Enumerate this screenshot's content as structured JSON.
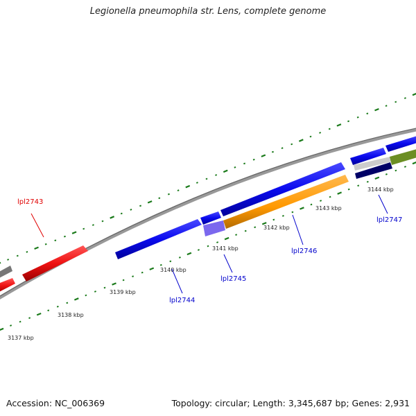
{
  "title": "Legionella pneumophila str. Lens, complete genome",
  "footer": {
    "accession": "Accession: NC_006369",
    "topology": "Topology: circular; Length: 3,345,687 bp; Genes: 2,931"
  },
  "ticks": [
    "3137 kbp",
    "3138 kbp",
    "3139 kbp",
    "3140 kbp",
    "3141 kbp",
    "3142 kbp",
    "3143 kbp",
    "3144 kbp"
  ],
  "genes": [
    {
      "id": "lpl2743",
      "label": "lpl2743",
      "color": "#e00000"
    },
    {
      "id": "lpl2744",
      "label": "lpl2744",
      "color": "#0000cc"
    },
    {
      "id": "lpl2745",
      "label": "lpl2745",
      "color": "#0000cc"
    },
    {
      "id": "lpl2746",
      "label": "lpl2746",
      "color": "#0000cc"
    },
    {
      "id": "lpl2747",
      "label": "lpl2747",
      "color": "#0000cc"
    }
  ],
  "colors": {
    "cds": "#0a0aee",
    "rna": "#ee1111",
    "orange": "#ff9900",
    "olive": "#6b8e23",
    "lavender": "#7b68ee",
    "navy": "#000066",
    "gray": "#777777",
    "tickmark": "#1a7a1a"
  }
}
